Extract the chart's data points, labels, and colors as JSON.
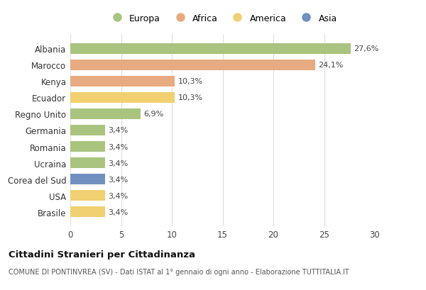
{
  "countries": [
    "Albania",
    "Marocco",
    "Kenya",
    "Ecuador",
    "Regno Unito",
    "Germania",
    "Romania",
    "Ucraina",
    "Corea del Sud",
    "USA",
    "Brasile"
  ],
  "values": [
    27.6,
    24.1,
    10.3,
    10.3,
    6.9,
    3.4,
    3.4,
    3.4,
    3.4,
    3.4,
    3.4
  ],
  "labels": [
    "27,6%",
    "24,1%",
    "10,3%",
    "10,3%",
    "6,9%",
    "3,4%",
    "3,4%",
    "3,4%",
    "3,4%",
    "3,4%",
    "3,4%"
  ],
  "bar_colors": [
    "#a8c47e",
    "#e8aa80",
    "#e8aa80",
    "#f0d070",
    "#a8c47e",
    "#a8c47e",
    "#a8c47e",
    "#a8c47e",
    "#7090c0",
    "#f0d070",
    "#f0d070"
  ],
  "legend_labels": [
    "Europa",
    "Africa",
    "America",
    "Asia"
  ],
  "legend_colors": [
    "#a8c47e",
    "#e8aa80",
    "#f0d070",
    "#7090c0"
  ],
  "title": "Cittadini Stranieri per Cittadinanza",
  "subtitle": "COMUNE DI PONTINVREA (SV) - Dati ISTAT al 1° gennaio di ogni anno - Elaborazione TUTTITALIA.IT",
  "xlim": [
    0,
    30
  ],
  "xticks": [
    0,
    5,
    10,
    15,
    20,
    25,
    30
  ],
  "background_color": "#ffffff",
  "grid_color": "#dddddd"
}
